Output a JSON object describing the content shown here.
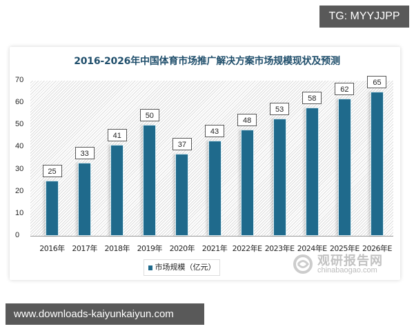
{
  "overlay": {
    "tg_label": "TG: MYYJJPP",
    "footer_url": "www.downloads-kaiyunkaiyun.com"
  },
  "watermark": {
    "name": "观研报告网",
    "domain": "chinabaogao.com"
  },
  "colors": {
    "bar": "#1f6a8c",
    "title": "#1f4e6b"
  },
  "chart_data": {
    "type": "bar",
    "title": "2016-2026年中国体育市场推广解决方案市场规模现状及预测",
    "xlabel": "",
    "ylabel": "",
    "ylim": [
      0,
      70
    ],
    "yticks": [
      0,
      10,
      20,
      30,
      40,
      50,
      60,
      70
    ],
    "categories": [
      "2016年",
      "2017年",
      "2018年",
      "2019年",
      "2020年",
      "2021年",
      "2022年E",
      "2023年E",
      "2024年E",
      "2025年E",
      "2026年E"
    ],
    "series": [
      {
        "name": "市场规模（亿元）",
        "values": [
          25,
          33,
          41,
          50,
          37,
          43,
          48,
          53,
          58,
          62,
          65
        ]
      }
    ],
    "legend_position": "bottom",
    "grid": false
  }
}
